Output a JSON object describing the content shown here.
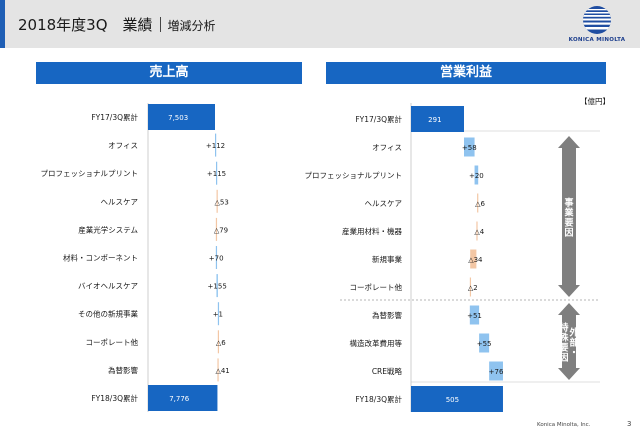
{
  "header": {
    "title": "2018年度3Q　業績",
    "subtitle": "増減分析",
    "logo_text": "KONICA MINOLTA"
  },
  "footer": {
    "company": "Konica Minolta, Inc.",
    "page": "3"
  },
  "colors": {
    "band": "#1766c2",
    "total_bar": "#1766c2",
    "increase_bar": "#8fc3ef",
    "decrease_bar": "#f3c7a5",
    "bracket_arrow": "#7f7f7f"
  },
  "chart_data": [
    {
      "type": "bar",
      "subtype": "waterfall",
      "title": "売上高",
      "categories": [
        "FY17/3Q累計",
        "オフィス",
        "プロフェッショナルプリント",
        "ヘルスケア",
        "産業光学システム",
        "材料・コンポーネント",
        "バイオヘルスケア",
        "その他の新規事業",
        "コーポレート他",
        "為替影響",
        "FY18/3Q累計"
      ],
      "values": [
        7503,
        112,
        115,
        -53,
        -79,
        70,
        155,
        1,
        -6,
        -41,
        7776
      ],
      "data_labels": [
        "7,503",
        "+112",
        "+115",
        "△53",
        "△79",
        "+70",
        "+155",
        "+1",
        "△6",
        "△41",
        "7,776"
      ],
      "totals": [
        0,
        10
      ]
    },
    {
      "type": "bar",
      "subtype": "waterfall",
      "title": "営業利益",
      "unit": "【億円】",
      "categories": [
        "FY17/3Q累計",
        "オフィス",
        "プロフェッショナルプリント",
        "ヘルスケア",
        "産業用材料・機器",
        "新規事業",
        "コーポレート他",
        "為替影響",
        "構造改革費用等",
        "CRE戦略",
        "FY18/3Q累計"
      ],
      "values": [
        291,
        58,
        20,
        -6,
        -4,
        -34,
        -2,
        51,
        55,
        76,
        505
      ],
      "data_labels": [
        "291",
        "+58",
        "+20",
        "△6",
        "△4",
        "△34",
        "△2",
        "+51",
        "+55",
        "+76",
        "505"
      ],
      "totals": [
        0,
        10
      ],
      "groups": [
        {
          "label": "事業要因",
          "from": 1,
          "to": 6
        },
        {
          "label": "外部・特殊要因",
          "from": 7,
          "to": 9
        }
      ]
    }
  ]
}
